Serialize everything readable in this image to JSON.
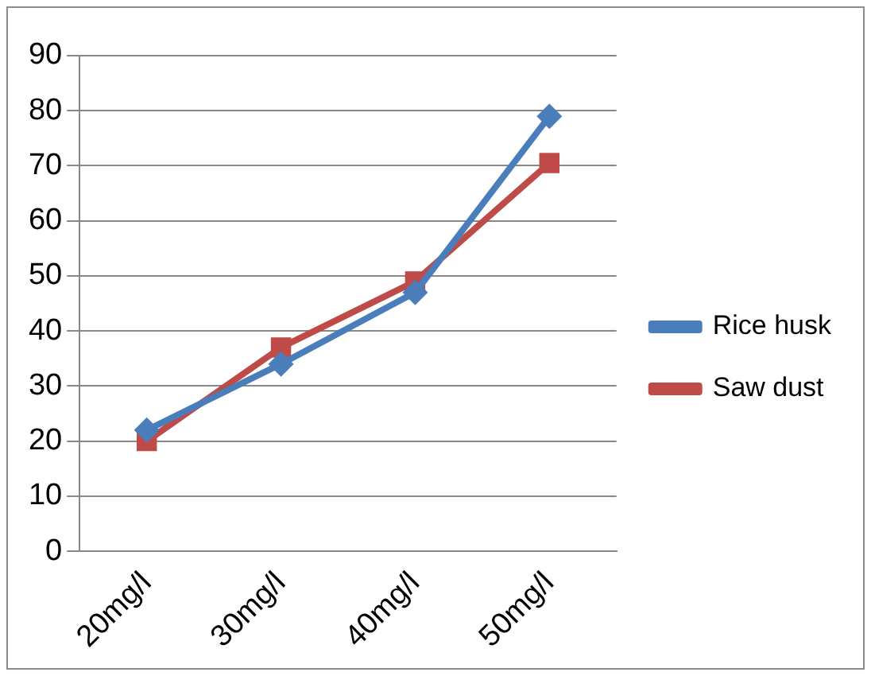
{
  "chart_data": {
    "type": "line",
    "categories": [
      "20mg/l",
      "30mg/l",
      "40mg/l",
      "50mg/l"
    ],
    "series": [
      {
        "name": "Rice husk",
        "color": "#4a7ebb",
        "values": [
          22,
          34,
          47,
          79
        ],
        "marker": "diamond"
      },
      {
        "name": "Saw dust",
        "color": "#be4b48",
        "values": [
          20,
          37,
          49,
          70.5
        ],
        "marker": "square"
      }
    ],
    "ylim": [
      0,
      90
    ],
    "yticks": [
      0,
      10,
      20,
      30,
      40,
      50,
      60,
      70,
      80,
      90
    ],
    "grid": "y",
    "legend": "right"
  }
}
